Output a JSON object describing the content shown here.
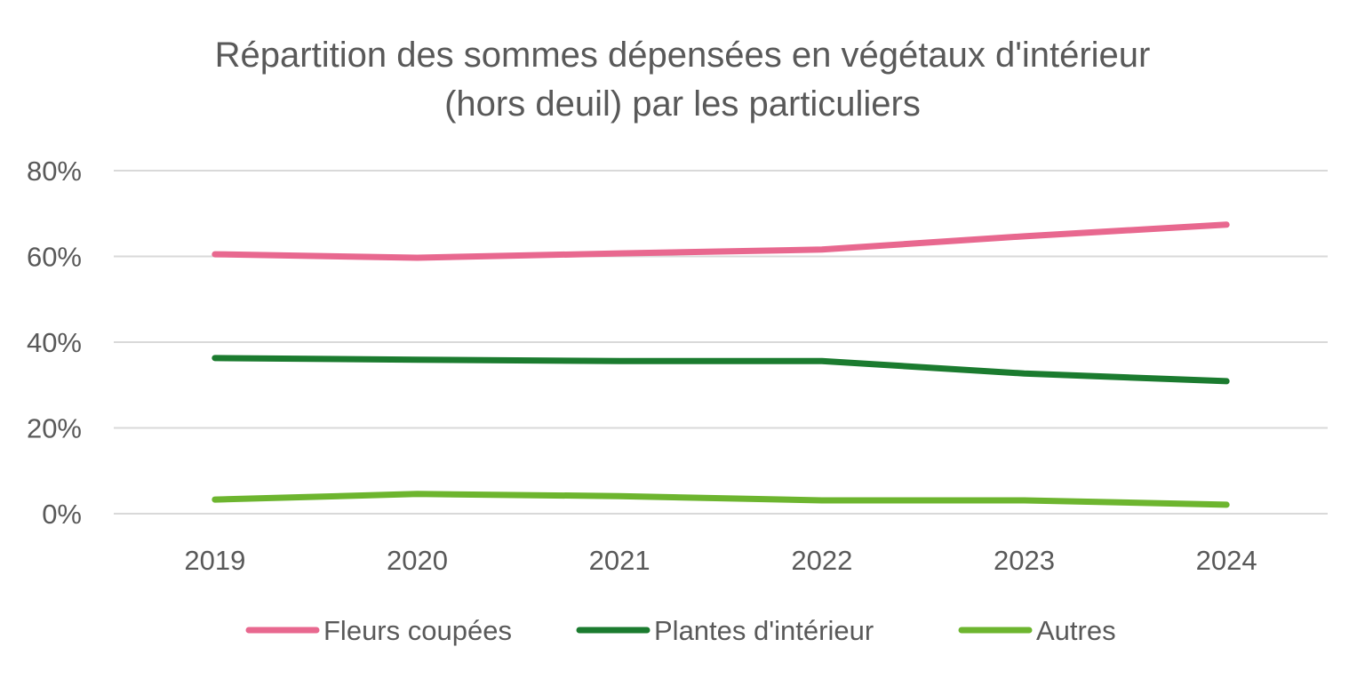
{
  "chart_data": {
    "type": "line",
    "title_lines": [
      "Répartition des sommes dépensées en végétaux d'intérieur",
      "(hors deuil) par les particuliers"
    ],
    "categories": [
      "2019",
      "2020",
      "2021",
      "2022",
      "2023",
      "2024"
    ],
    "y_ticks": [
      "0%",
      "20%",
      "40%",
      "60%",
      "80%"
    ],
    "ylim": [
      0,
      80
    ],
    "y_unit": "%",
    "grid": "horizontal",
    "legend_position": "bottom",
    "series": [
      {
        "name": "Fleurs coupées",
        "color": "#E8688F",
        "values": [
          60.5,
          59.7,
          60.7,
          61.6,
          64.7,
          67.4
        ]
      },
      {
        "name": "Plantes d'intérieur",
        "color": "#1B7B2F",
        "values": [
          36.3,
          35.9,
          35.6,
          35.6,
          32.7,
          30.9
        ]
      },
      {
        "name": "Autres",
        "color": "#6DB52F",
        "values": [
          3.3,
          4.6,
          4.1,
          3.1,
          3.1,
          2.1
        ]
      }
    ],
    "colors": {
      "text": "#595959",
      "grid": "#D9D9D9"
    }
  }
}
